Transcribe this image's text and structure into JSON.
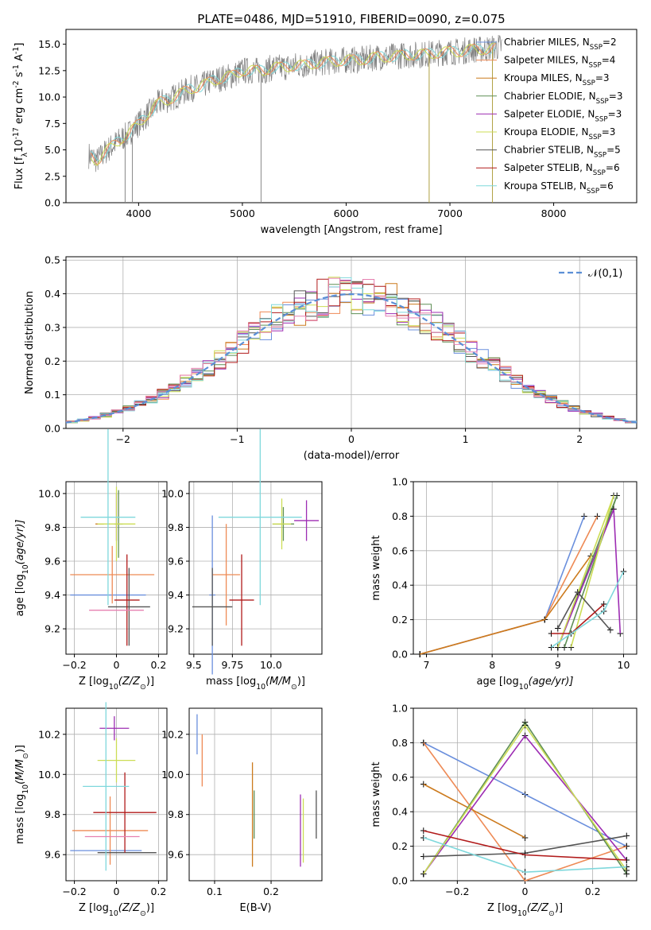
{
  "figure": {
    "title": "PLATE=0486, MJD=51910, FIBERID=0090, z=0.075"
  },
  "colors": {
    "spectrum": "#808080",
    "series": [
      "#6a8fdd",
      "#ee8a55",
      "#cc7a1d",
      "#5f8f55",
      "#9d2db3",
      "#ccdd55",
      "#555555",
      "#b11a1a",
      "#7fd8dc"
    ],
    "hist_extra": "#e680b0",
    "normal_curve": "#5b8fd6"
  },
  "legend": {
    "items": [
      "Chabrier MILES, N$_{SSP}$=2",
      "Salpeter MILES, N$_{SSP}$=4",
      "Kroupa MILES, N$_{SSP}$=3",
      "Chabrier ELODIE, N$_{SSP}$=3",
      "Salpeter ELODIE, N$_{SSP}$=3",
      "Kroupa ELODIE, N$_{SSP}$=3",
      "Chabrier STELIB, N$_{SSP}$=5",
      "Salpeter STELIB, N$_{SSP}$=6",
      "Kroupa STELIB, N$_{SSP}$=6"
    ]
  },
  "chart_data": [
    {
      "id": "spectrum",
      "type": "line",
      "xlabel": "wavelength [Angstrom, rest frame]",
      "ylabel": "Flux [f$_\\lambda$10$^{-17}$ erg cm$^{-2}$ s$^{-1}$ A$^{-1}$]",
      "xlim": [
        3300,
        8800
      ],
      "ylim": [
        0,
        16.4
      ],
      "xticks": [
        4000,
        5000,
        6000,
        7000,
        8000
      ],
      "yticks": [
        0.0,
        2.5,
        5.0,
        7.5,
        10.0,
        12.5,
        15.0
      ],
      "grid": false,
      "legend_position": "right",
      "data_x": [
        3520,
        3600,
        3700,
        3800,
        3900,
        4000,
        4100,
        4200,
        4300,
        4400,
        4500,
        4600,
        4700,
        4800,
        4900,
        5000,
        5100,
        5200,
        5300,
        5400,
        5500,
        5600,
        5700,
        5800,
        5900,
        6000,
        6100,
        6200,
        6300,
        6400,
        6500,
        6600,
        6700,
        6800,
        6900,
        7000,
        7100,
        7200,
        7300,
        7400,
        7500
      ],
      "data_y": [
        4.5,
        4.0,
        5.0,
        5.8,
        6.5,
        7.5,
        8.5,
        9.5,
        9.8,
        10.3,
        10.8,
        11.0,
        11.5,
        11.8,
        12.0,
        12.5,
        12.5,
        12.5,
        12.8,
        12.8,
        13.0,
        13.0,
        13.2,
        13.3,
        13.4,
        13.5,
        13.5,
        13.6,
        13.8,
        13.8,
        13.9,
        14.0,
        14.0,
        14.1,
        14.2,
        14.3,
        14.3,
        14.5,
        14.5,
        14.6,
        14.8
      ]
    },
    {
      "id": "residuals",
      "type": "bar",
      "xlabel": "(data-model)/error",
      "ylabel": "Normed distribution",
      "xlim": [
        -2.5,
        2.5
      ],
      "ylim": [
        0,
        0.51
      ],
      "xticks": [
        -2,
        -1,
        0,
        1,
        2
      ],
      "yticks": [
        0.0,
        0.1,
        0.2,
        0.3,
        0.4,
        0.5
      ],
      "grid": true,
      "legend_position": "top-right",
      "legend": [
        "$\\mathcal{N}(0,1)$"
      ],
      "bin_width": 0.1
    },
    {
      "id": "age_vs_Z",
      "type": "scatter",
      "xlabel": "Z [log$_{10}$(Z/Z$_\\odot$)]",
      "ylabel": "age  [log$_{10}$(age/yr)]",
      "xlim": [
        -0.24,
        0.24
      ],
      "ylim": [
        9.05,
        10.07
      ],
      "xticks": [
        -0.2,
        0.0,
        0.2
      ],
      "yticks": [
        9.2,
        9.4,
        9.6,
        9.8,
        10.0
      ],
      "grid": true,
      "points": [
        {
          "x": -0.04,
          "y": 9.4,
          "xerr": 0.18,
          "yerr": 0.0
        },
        {
          "x": -0.02,
          "y": 9.52,
          "xerr": 0.2,
          "yerr": 0.17
        },
        {
          "x": -0.08,
          "y": 9.82,
          "xerr": 0.02,
          "yerr": 0.0
        },
        {
          "x": 0.01,
          "y": 9.82,
          "xerr": 0.02,
          "yerr": 0.2
        },
        {
          "x": 0.0,
          "y": 9.86,
          "xerr": 0.0,
          "yerr": 0.14
        },
        {
          "x": 0.0,
          "y": 9.82,
          "xerr": 0.09,
          "yerr": 0.22
        },
        {
          "x": 0.06,
          "y": 9.33,
          "xerr": 0.1,
          "yerr": 0.23
        },
        {
          "x": 0.05,
          "y": 9.37,
          "xerr": 0.06,
          "yerr": 0.27
        },
        {
          "x": -0.04,
          "y": 9.86,
          "xerr": 0.13,
          "yerr": 0.52
        },
        {
          "x": 0.0,
          "y": 9.31,
          "xerr": 0.13,
          "yerr": 0.0
        }
      ]
    },
    {
      "id": "age_vs_mass",
      "type": "scatter",
      "xlabel": "mass [log$_{10}$(M/M$_\\odot$)]",
      "ylabel": "",
      "xlim": [
        9.47,
        10.33
      ],
      "ylim": [
        9.05,
        10.07
      ],
      "xticks": [
        9.5,
        9.75,
        10.0
      ],
      "xticklabels": [
        "9.5",
        "9.75",
        "10.0"
      ],
      "yticks": [
        9.2,
        9.4,
        9.6,
        9.8,
        10.0
      ],
      "grid": true,
      "points": [
        {
          "x": 9.62,
          "y": 9.4,
          "xerr": 0.02,
          "yerr": 0.47
        },
        {
          "x": 9.71,
          "y": 9.52,
          "xerr": 0.09,
          "yerr": 0.3
        },
        {
          "x": 9.64,
          "y": 9.82,
          "xerr": 0.0,
          "yerr": 0.0
        },
        {
          "x": 10.08,
          "y": 9.82,
          "xerr": 0.07,
          "yerr": 0.1
        },
        {
          "x": 10.23,
          "y": 9.84,
          "xerr": 0.08,
          "yerr": 0.12
        },
        {
          "x": 10.07,
          "y": 9.82,
          "xerr": 0.06,
          "yerr": 0.15
        },
        {
          "x": 9.62,
          "y": 9.33,
          "xerr": 0.13,
          "yerr": 0.23
        },
        {
          "x": 9.81,
          "y": 9.37,
          "xerr": 0.08,
          "yerr": 0.27
        },
        {
          "x": 9.93,
          "y": 9.86,
          "xerr": 0.27,
          "yerr": 0.52
        },
        {
          "x": 9.69,
          "y": 9.31,
          "xerr": 0.0,
          "yerr": 0.0
        }
      ]
    },
    {
      "id": "weight_vs_age",
      "type": "line",
      "xlabel": "age  [log$_{10}$(age/yr)]",
      "ylabel": "mass weight",
      "xlim": [
        6.8,
        10.2
      ],
      "ylim": [
        0,
        1.0
      ],
      "xticks": [
        7,
        8,
        9,
        10
      ],
      "yticks": [
        0.0,
        0.2,
        0.4,
        0.6,
        0.8,
        1.0
      ],
      "grid": true,
      "series": [
        {
          "x": [
            6.9,
            8.8,
            9.4
          ],
          "y": [
            0.0,
            0.2,
            0.8
          ]
        },
        {
          "x": [
            6.9,
            8.8,
            9.6
          ],
          "y": [
            0.0,
            0.2,
            0.8
          ]
        },
        {
          "x": [
            6.9,
            8.8,
            9.5
          ],
          "y": [
            0.0,
            0.2,
            0.57
          ]
        },
        {
          "x": [
            9.0,
            9.9,
            9.1
          ],
          "y": [
            0.04,
            0.92,
            0.04
          ]
        },
        {
          "x": [
            9.0,
            9.85,
            9.95
          ],
          "y": [
            0.04,
            0.84,
            0.12
          ]
        },
        {
          "x": [
            9.0,
            9.85,
            9.2
          ],
          "y": [
            0.04,
            0.92,
            0.04
          ]
        },
        {
          "x": [
            9.0,
            9.3,
            9.8
          ],
          "y": [
            0.15,
            0.36,
            0.14
          ]
        },
        {
          "x": [
            8.9,
            9.2,
            9.7
          ],
          "y": [
            0.12,
            0.12,
            0.29
          ]
        },
        {
          "x": [
            8.9,
            9.7,
            10.0
          ],
          "y": [
            0.04,
            0.25,
            0.48
          ]
        }
      ]
    },
    {
      "id": "mass_vs_Z",
      "type": "scatter",
      "xlabel": "Z [log$_{10}$(Z/Z$_\\odot$)]",
      "ylabel": "mass [log$_{10}$(M/M$_\\odot$)]",
      "xlim": [
        -0.24,
        0.24
      ],
      "ylim": [
        9.47,
        10.33
      ],
      "xticks": [
        -0.2,
        0.0,
        0.2
      ],
      "yticks": [
        9.6,
        9.8,
        10.0,
        10.2
      ],
      "grid": true,
      "points": [
        {
          "x": -0.05,
          "y": 9.62,
          "xerr": 0.17,
          "yerr": 0.0
        },
        {
          "x": -0.03,
          "y": 9.72,
          "xerr": 0.18,
          "yerr": 0.17
        },
        {
          "x": -0.09,
          "y": 9.62,
          "xerr": 0.0,
          "yerr": 0.0
        },
        {
          "x": 0.01,
          "y": 10.07,
          "xerr": 0.0,
          "yerr": 0.0
        },
        {
          "x": -0.01,
          "y": 10.23,
          "xerr": 0.07,
          "yerr": 0.06
        },
        {
          "x": 0.0,
          "y": 10.07,
          "xerr": 0.09,
          "yerr": 0.11
        },
        {
          "x": 0.05,
          "y": 9.61,
          "xerr": 0.14,
          "yerr": 0.0
        },
        {
          "x": 0.04,
          "y": 9.81,
          "xerr": 0.15,
          "yerr": 0.2
        },
        {
          "x": -0.05,
          "y": 9.94,
          "xerr": 0.11,
          "yerr": 0.42
        },
        {
          "x": -0.02,
          "y": 9.69,
          "xerr": 0.13,
          "yerr": 0.0
        }
      ]
    },
    {
      "id": "mass_vs_ebv",
      "type": "scatter",
      "xlabel": "E(B-V)",
      "ylabel": "",
      "xlim": [
        0.055,
        0.29
      ],
      "ylim": [
        9.47,
        10.33
      ],
      "xticks": [
        0.1,
        0.2
      ],
      "yticks": [
        9.6,
        9.8,
        10.0,
        10.2
      ],
      "grid": true,
      "points": [
        {
          "x": 0.069,
          "y": 10.2,
          "yerr": 0.1
        },
        {
          "x": 0.078,
          "y": 10.07,
          "yerr": 0.13
        },
        {
          "x": 0.167,
          "y": 9.8,
          "yerr": 0.26
        },
        {
          "x": 0.17,
          "y": 9.8,
          "yerr": 0.12
        },
        {
          "x": 0.252,
          "y": 9.72,
          "yerr": 0.18
        },
        {
          "x": 0.257,
          "y": 9.72,
          "yerr": 0.16
        },
        {
          "x": 0.28,
          "y": 9.8,
          "yerr": 0.12
        }
      ]
    },
    {
      "id": "weight_vs_Z",
      "type": "line",
      "xlabel": "Z [log$_{10}$(Z/Z$_\\odot$)]",
      "ylabel": "mass weight",
      "xlim": [
        -0.33,
        0.33
      ],
      "ylim": [
        0,
        1.0
      ],
      "xticks": [
        -0.2,
        0.0,
        0.2
      ],
      "yticks": [
        0.0,
        0.2,
        0.4,
        0.6,
        0.8,
        1.0
      ],
      "grid": true,
      "series": [
        {
          "x": [
            -0.3,
            0.0,
            0.3
          ],
          "y": [
            0.8,
            0.5,
            0.2
          ]
        },
        {
          "x": [
            -0.3,
            0.0,
            0.3
          ],
          "y": [
            0.8,
            0.0,
            0.2
          ]
        },
        {
          "x": [
            -0.3,
            0.0
          ],
          "y": [
            0.56,
            0.25
          ]
        },
        {
          "x": [
            -0.3,
            0.0,
            0.3
          ],
          "y": [
            0.04,
            0.92,
            0.04
          ]
        },
        {
          "x": [
            -0.3,
            0.0,
            0.3
          ],
          "y": [
            0.04,
            0.84,
            0.12
          ]
        },
        {
          "x": [
            -0.3,
            0.0,
            0.3
          ],
          "y": [
            0.04,
            0.9,
            0.06
          ]
        },
        {
          "x": [
            -0.3,
            0.0,
            0.3
          ],
          "y": [
            0.14,
            0.16,
            0.26
          ]
        },
        {
          "x": [
            -0.3,
            0.0,
            0.3
          ],
          "y": [
            0.29,
            0.15,
            0.12
          ]
        },
        {
          "x": [
            -0.3,
            0.0,
            0.3
          ],
          "y": [
            0.25,
            0.05,
            0.08
          ]
        }
      ]
    }
  ]
}
